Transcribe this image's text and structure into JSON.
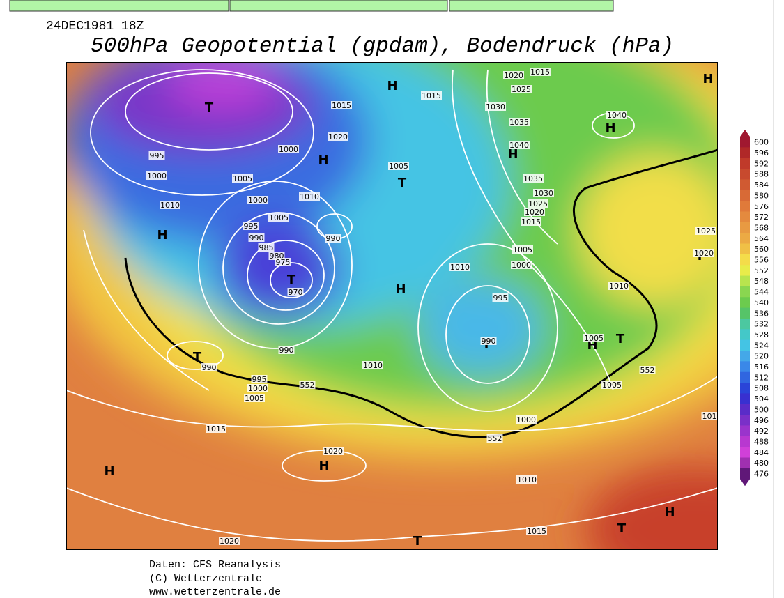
{
  "header": {
    "date": "24DEC1981 18Z",
    "title": "500hPa Geopotential (gpdam), Bodendruck (hPa)"
  },
  "colorbar": {
    "labels": [
      600,
      596,
      592,
      588,
      584,
      580,
      576,
      572,
      568,
      564,
      560,
      556,
      552,
      548,
      544,
      540,
      536,
      532,
      528,
      524,
      520,
      516,
      512,
      508,
      504,
      500,
      496,
      492,
      488,
      484,
      480,
      476
    ]
  },
  "pressure_centers": [
    "H",
    "H",
    "H",
    "H",
    "H",
    "H",
    "H",
    "H",
    "H",
    "H",
    "H",
    "T",
    "T",
    "T",
    "T",
    "T",
    "T",
    "T",
    "T",
    "T"
  ],
  "isobar_labels": [
    "1020",
    "1015",
    "1025",
    "1015",
    "1015",
    "1030",
    "1035",
    "1040",
    "1040",
    "1020",
    "1000",
    "995",
    "1000",
    "1005",
    "1005",
    "1035",
    "1030",
    "1010",
    "1025",
    "1000",
    "1010",
    "1020",
    "1005",
    "1015",
    "995",
    "990",
    "990",
    "985",
    "980",
    "975",
    "1025",
    "1020",
    "1005",
    "1000",
    "1010",
    "1010",
    "970",
    "995",
    "990",
    "1005",
    "990",
    "990",
    "1010",
    "995",
    "1000",
    "1005",
    "552",
    "552",
    "1005",
    "1015",
    "1020",
    "1000",
    "552",
    "1010",
    "1015",
    "1020",
    "101"
  ],
  "footer": {
    "source": "Daten: CFS Reanalysis",
    "copyright": "(C) Wetterzentrale",
    "url": "www.wetterzentrale.de"
  }
}
